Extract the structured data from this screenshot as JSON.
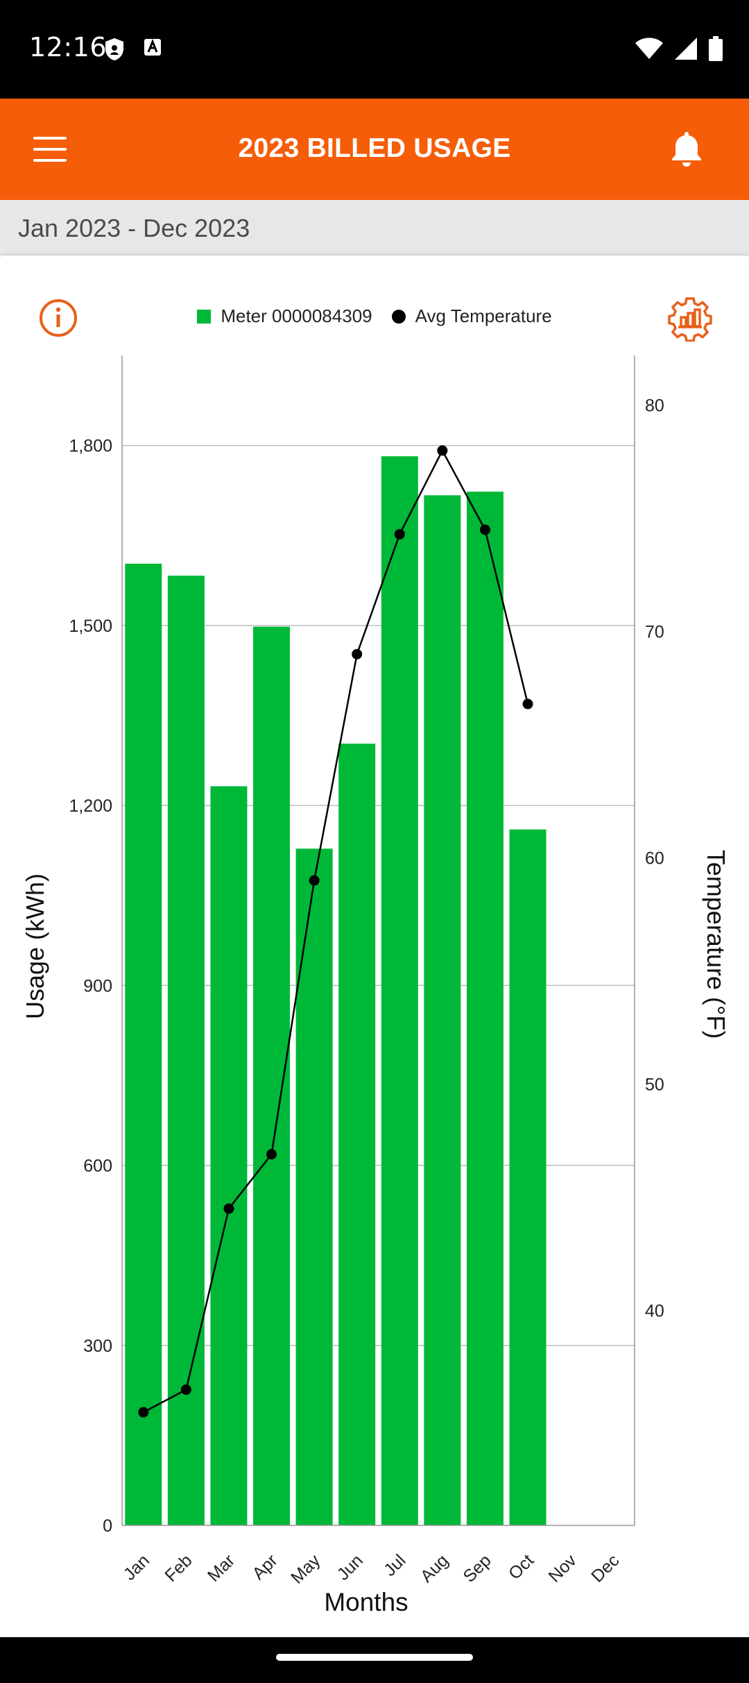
{
  "status_bar": {
    "time": "12:16",
    "icons": [
      "shield-icon",
      "font-icon",
      "wifi-icon",
      "signal-icon",
      "battery-icon"
    ]
  },
  "app_bar": {
    "title": "2023 BILLED USAGE",
    "menu_icon": "hamburger-menu-icon",
    "notification_icon": "bell-icon"
  },
  "date_range": {
    "label": "Jan 2023 - Dec 2023"
  },
  "colors": {
    "accent": "#f55d08",
    "bar": "#00b837",
    "line": "#000000"
  },
  "chart_data": {
    "type": "bar",
    "categories": [
      "Jan",
      "Feb",
      "Mar",
      "Apr",
      "May",
      "Jun",
      "Jul",
      "Aug",
      "Sep",
      "Oct",
      "Nov",
      "Dec"
    ],
    "series": [
      {
        "name": "Meter 0000084309",
        "type": "bar",
        "axis": "left",
        "values": [
          1603,
          1583,
          1232,
          1498,
          1128,
          1303,
          1782,
          1717,
          1723,
          1160,
          null,
          null
        ]
      },
      {
        "name": "Avg Temperature",
        "type": "line",
        "axis": "right",
        "values": [
          35.5,
          36.5,
          44.5,
          46.9,
          59.0,
          69.0,
          74.3,
          78.0,
          74.5,
          66.8,
          null,
          null
        ]
      }
    ],
    "xlabel": "Months",
    "ylabel": "Usage (kWh)",
    "y2label": "Temperature (°F)",
    "ylim": [
      0,
      1950
    ],
    "y2lim": [
      30.5,
      82.2
    ],
    "yticks": [
      0,
      300,
      600,
      900,
      1200,
      1500,
      1800
    ],
    "ytick_labels": [
      "0",
      "300",
      "600",
      "900",
      "1,200",
      "1,500",
      "1,800"
    ],
    "y2ticks": [
      40,
      50,
      60,
      70,
      80
    ],
    "y2tick_labels": [
      "40",
      "50",
      "60",
      "70",
      "80"
    ],
    "grid": true,
    "legend_position": "top"
  }
}
